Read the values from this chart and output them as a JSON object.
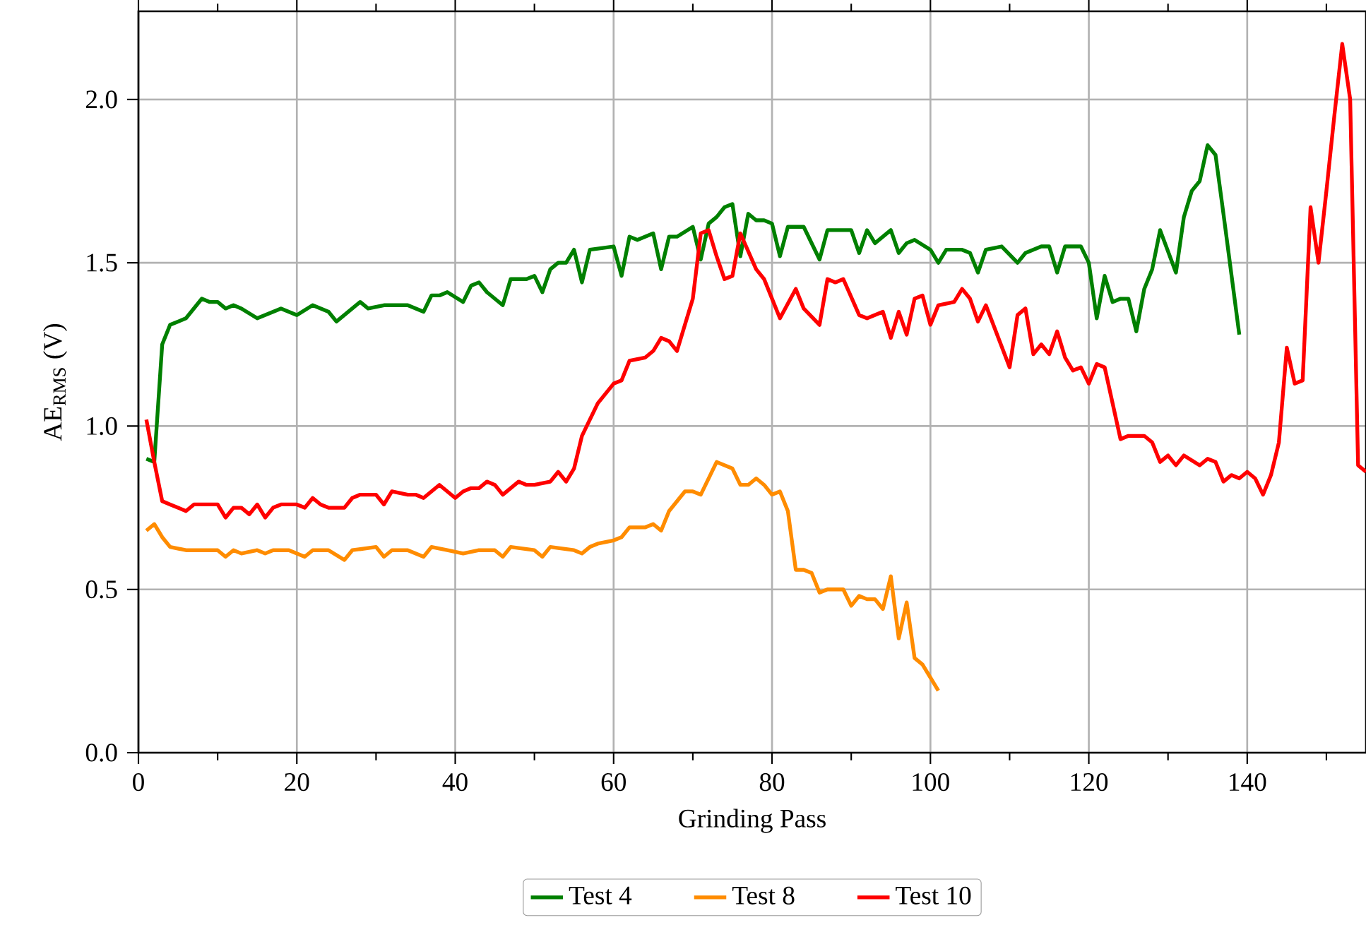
{
  "chart_data": {
    "type": "line",
    "xlabel": "Grinding Pass",
    "ylabel": "AE$_{RMS}$ (V)",
    "xlim": [
      0,
      155
    ],
    "ylim": [
      0,
      2.27
    ],
    "xticks": [
      0,
      {
        "value": 10,
        "label": null
      },
      20,
      {
        "value": 30,
        "label": null
      },
      40,
      {
        "value": 50,
        "label": null
      },
      60,
      {
        "value": 70,
        "label": null
      },
      80,
      {
        "value": 90,
        "label": null
      },
      100,
      {
        "value": 110,
        "label": null
      },
      120,
      {
        "value": 130,
        "label": null
      },
      140,
      {
        "value": 150,
        "label": null
      }
    ],
    "yticks": [
      {
        "value": 0,
        "label": "0.0"
      },
      {
        "value": 0.5,
        "label": "0.5"
      },
      {
        "value": 1,
        "label": "1.0"
      },
      {
        "value": 1.5,
        "label": "1.5"
      },
      {
        "value": 2,
        "label": "2.0"
      }
    ],
    "grid": true,
    "legend": "bottom",
    "marker": "none",
    "line_style": "solid",
    "series": [
      {
        "name": "Test 4",
        "color": "#008000",
        "x": [
          1,
          2,
          3,
          4,
          6,
          8,
          9,
          10,
          11,
          12,
          13,
          15,
          18,
          20,
          22,
          24,
          25,
          28,
          29,
          31,
          34,
          36,
          37,
          38,
          39,
          41,
          42,
          43,
          44,
          46,
          47,
          49,
          50,
          51,
          52,
          53,
          54,
          55,
          56,
          57,
          60,
          61,
          62,
          63,
          65,
          66,
          67,
          68,
          70,
          71,
          72,
          73,
          74,
          75,
          76,
          77,
          78,
          79,
          80,
          81,
          82,
          84,
          86,
          87,
          88,
          90,
          91,
          92,
          93,
          95,
          96,
          97,
          98,
          100,
          101,
          102,
          104,
          105,
          106,
          107,
          109,
          111,
          112,
          114,
          115,
          116,
          117,
          119,
          120,
          121,
          122,
          123,
          124,
          125,
          126,
          127,
          128,
          129,
          131,
          132,
          133,
          134,
          135,
          136,
          137,
          139
        ],
        "values": [
          0.9,
          0.89,
          1.25,
          1.31,
          1.33,
          1.39,
          1.38,
          1.38,
          1.36,
          1.37,
          1.36,
          1.33,
          1.36,
          1.34,
          1.37,
          1.35,
          1.32,
          1.38,
          1.36,
          1.37,
          1.37,
          1.35,
          1.4,
          1.4,
          1.41,
          1.38,
          1.43,
          1.44,
          1.41,
          1.37,
          1.45,
          1.45,
          1.46,
          1.41,
          1.48,
          1.5,
          1.5,
          1.54,
          1.44,
          1.54,
          1.55,
          1.46,
          1.58,
          1.57,
          1.59,
          1.48,
          1.58,
          1.58,
          1.61,
          1.51,
          1.62,
          1.64,
          1.67,
          1.68,
          1.52,
          1.65,
          1.63,
          1.63,
          1.62,
          1.52,
          1.61,
          1.61,
          1.51,
          1.6,
          1.6,
          1.6,
          1.53,
          1.6,
          1.56,
          1.6,
          1.53,
          1.56,
          1.57,
          1.54,
          1.5,
          1.54,
          1.54,
          1.53,
          1.47,
          1.54,
          1.55,
          1.5,
          1.53,
          1.55,
          1.55,
          1.47,
          1.55,
          1.55,
          1.5,
          1.33,
          1.46,
          1.38,
          1.39,
          1.39,
          1.29,
          1.42,
          1.48,
          1.6,
          1.47,
          1.64,
          1.72,
          1.75,
          1.86,
          1.83,
          1.65,
          1.28
        ]
      },
      {
        "name": "Test 8",
        "color": "#ff8c00",
        "x": [
          1,
          2,
          3,
          4,
          6,
          8,
          10,
          11,
          12,
          13,
          15,
          16,
          17,
          19,
          21,
          22,
          24,
          26,
          27,
          30,
          31,
          32,
          34,
          36,
          37,
          39,
          41,
          43,
          45,
          46,
          47,
          50,
          51,
          52,
          55,
          56,
          57,
          58,
          60,
          61,
          62,
          64,
          65,
          66,
          67,
          69,
          70,
          71,
          73,
          75,
          76,
          77,
          78,
          79,
          80,
          81,
          82,
          83,
          84,
          85,
          86,
          87,
          89,
          90,
          91,
          92,
          93,
          94,
          95,
          96,
          97,
          98,
          99,
          101
        ],
        "values": [
          0.68,
          0.7,
          0.66,
          0.63,
          0.62,
          0.62,
          0.62,
          0.6,
          0.62,
          0.61,
          0.62,
          0.61,
          0.62,
          0.62,
          0.6,
          0.62,
          0.62,
          0.59,
          0.62,
          0.63,
          0.6,
          0.62,
          0.62,
          0.6,
          0.63,
          0.62,
          0.61,
          0.62,
          0.62,
          0.6,
          0.63,
          0.62,
          0.6,
          0.63,
          0.62,
          0.61,
          0.63,
          0.64,
          0.65,
          0.66,
          0.69,
          0.69,
          0.7,
          0.68,
          0.74,
          0.8,
          0.8,
          0.79,
          0.89,
          0.87,
          0.82,
          0.82,
          0.84,
          0.82,
          0.79,
          0.8,
          0.74,
          0.56,
          0.56,
          0.55,
          0.49,
          0.5,
          0.5,
          0.45,
          0.48,
          0.47,
          0.47,
          0.44,
          0.54,
          0.35,
          0.46,
          0.29,
          0.27,
          0.19
        ]
      },
      {
        "name": "Test 10",
        "color": "#ff0000",
        "x": [
          1,
          2,
          3,
          4,
          6,
          7,
          9,
          10,
          11,
          12,
          13,
          14,
          15,
          16,
          17,
          18,
          20,
          21,
          22,
          23,
          24,
          26,
          27,
          28,
          30,
          31,
          32,
          34,
          35,
          36,
          37,
          38,
          39,
          40,
          41,
          42,
          43,
          44,
          45,
          46,
          47,
          48,
          49,
          50,
          52,
          53,
          54,
          55,
          56,
          58,
          60,
          61,
          62,
          64,
          65,
          66,
          67,
          68,
          69,
          70,
          71,
          72,
          73,
          74,
          75,
          76,
          78,
          79,
          81,
          83,
          84,
          86,
          87,
          88,
          89,
          91,
          92,
          94,
          95,
          96,
          97,
          98,
          99,
          100,
          101,
          103,
          104,
          105,
          106,
          107,
          110,
          111,
          112,
          113,
          114,
          115,
          116,
          117,
          118,
          119,
          120,
          121,
          122,
          124,
          125,
          127,
          128,
          129,
          130,
          131,
          132,
          134,
          135,
          136,
          137,
          138,
          139,
          140,
          141,
          142,
          143,
          144,
          145,
          146,
          147,
          148,
          149,
          150,
          151,
          152,
          153,
          154,
          155
        ],
        "values": [
          1.02,
          0.89,
          0.77,
          0.76,
          0.74,
          0.76,
          0.76,
          0.76,
          0.72,
          0.75,
          0.75,
          0.73,
          0.76,
          0.72,
          0.75,
          0.76,
          0.76,
          0.75,
          0.78,
          0.76,
          0.75,
          0.75,
          0.78,
          0.79,
          0.79,
          0.76,
          0.8,
          0.79,
          0.79,
          0.78,
          0.8,
          0.82,
          0.8,
          0.78,
          0.8,
          0.81,
          0.81,
          0.83,
          0.82,
          0.79,
          0.81,
          0.83,
          0.82,
          0.82,
          0.83,
          0.86,
          0.83,
          0.87,
          0.97,
          1.07,
          1.13,
          1.14,
          1.2,
          1.21,
          1.23,
          1.27,
          1.26,
          1.23,
          1.31,
          1.39,
          1.59,
          1.6,
          1.52,
          1.45,
          1.46,
          1.59,
          1.48,
          1.45,
          1.33,
          1.42,
          1.36,
          1.31,
          1.45,
          1.44,
          1.45,
          1.34,
          1.33,
          1.35,
          1.27,
          1.35,
          1.28,
          1.39,
          1.4,
          1.31,
          1.37,
          1.38,
          1.42,
          1.39,
          1.32,
          1.37,
          1.18,
          1.34,
          1.36,
          1.22,
          1.25,
          1.22,
          1.29,
          1.21,
          1.17,
          1.18,
          1.13,
          1.19,
          1.18,
          0.96,
          0.97,
          0.97,
          0.95,
          0.89,
          0.91,
          0.88,
          0.91,
          0.88,
          0.9,
          0.89,
          0.83,
          0.85,
          0.84,
          0.86,
          0.84,
          0.79,
          0.85,
          0.95,
          1.24,
          1.13,
          1.14,
          1.67,
          1.5,
          1.72,
          1.95,
          2.17,
          2.0,
          0.88,
          0.86
        ]
      }
    ]
  }
}
